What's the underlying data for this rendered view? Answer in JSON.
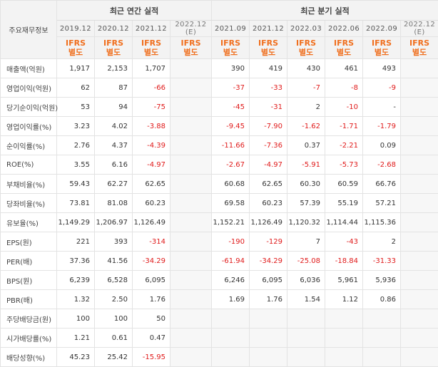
{
  "header": {
    "row_label": "주요재무정보",
    "annual_title": "최근 연간 실적",
    "quarter_title": "최근 분기 실적",
    "annual_periods": [
      {
        "period": "2019.12",
        "est": "",
        "type": "IFRS",
        "basis": "별도"
      },
      {
        "period": "2020.12",
        "est": "",
        "type": "IFRS",
        "basis": "별도"
      },
      {
        "period": "2021.12",
        "est": "",
        "type": "IFRS",
        "basis": "별도"
      },
      {
        "period": "2022.12",
        "est": "(E)",
        "type": "IFRS",
        "basis": "별도"
      }
    ],
    "quarter_periods": [
      {
        "period": "2021.09",
        "est": "",
        "type": "IFRS",
        "basis": "별도"
      },
      {
        "period": "2021.12",
        "est": "",
        "type": "IFRS",
        "basis": "별도"
      },
      {
        "period": "2022.03",
        "est": "",
        "type": "IFRS",
        "basis": "별도"
      },
      {
        "period": "2022.06",
        "est": "",
        "type": "IFRS",
        "basis": "별도"
      },
      {
        "period": "2022.09",
        "est": "",
        "type": "IFRS",
        "basis": "별도"
      },
      {
        "period": "2022.12",
        "est": "(E)",
        "type": "IFRS",
        "basis": "별도"
      }
    ]
  },
  "rows": [
    {
      "label": "매출액(억원)",
      "annual": [
        "1,917",
        "2,153",
        "1,707",
        ""
      ],
      "quarter": [
        "390",
        "419",
        "430",
        "461",
        "493",
        ""
      ]
    },
    {
      "label": "영업이익(억원)",
      "annual": [
        "62",
        "87",
        "-66",
        ""
      ],
      "quarter": [
        "-37",
        "-33",
        "-7",
        "-8",
        "-9",
        ""
      ]
    },
    {
      "label": "당기순이익(억원)",
      "annual": [
        "53",
        "94",
        "-75",
        ""
      ],
      "quarter": [
        "-45",
        "-31",
        "2",
        "-10",
        "-",
        ""
      ]
    },
    {
      "label": "영업이익률(%)",
      "annual": [
        "3.23",
        "4.02",
        "-3.88",
        ""
      ],
      "quarter": [
        "-9.45",
        "-7.90",
        "-1.62",
        "-1.71",
        "-1.79",
        ""
      ]
    },
    {
      "label": "순이익률(%)",
      "annual": [
        "2.76",
        "4.37",
        "-4.39",
        ""
      ],
      "quarter": [
        "-11.66",
        "-7.36",
        "0.37",
        "-2.21",
        "0.09",
        ""
      ]
    },
    {
      "label": "ROE(%)",
      "annual": [
        "3.55",
        "6.16",
        "-4.97",
        ""
      ],
      "quarter": [
        "-2.67",
        "-4.97",
        "-5.91",
        "-5.73",
        "-2.68",
        ""
      ]
    },
    {
      "label": "부채비율(%)",
      "annual": [
        "59.43",
        "62.27",
        "62.65",
        ""
      ],
      "quarter": [
        "60.68",
        "62.65",
        "60.30",
        "60.59",
        "66.76",
        ""
      ]
    },
    {
      "label": "당좌비율(%)",
      "annual": [
        "73.81",
        "81.08",
        "60.23",
        ""
      ],
      "quarter": [
        "69.58",
        "60.23",
        "57.39",
        "55.19",
        "57.21",
        ""
      ]
    },
    {
      "label": "유보율(%)",
      "annual": [
        "1,149.29",
        "1,206.97",
        "1,126.49",
        ""
      ],
      "quarter": [
        "1,152.21",
        "1,126.49",
        "1,120.32",
        "1,114.44",
        "1,115.36",
        ""
      ]
    },
    {
      "label": "EPS(원)",
      "annual": [
        "221",
        "393",
        "-314",
        ""
      ],
      "quarter": [
        "-190",
        "-129",
        "7",
        "-43",
        "2",
        ""
      ]
    },
    {
      "label": "PER(배)",
      "annual": [
        "37.36",
        "41.56",
        "-34.29",
        ""
      ],
      "quarter": [
        "-61.94",
        "-34.29",
        "-25.08",
        "-18.84",
        "-31.33",
        ""
      ]
    },
    {
      "label": "BPS(원)",
      "annual": [
        "6,239",
        "6,528",
        "6,095",
        ""
      ],
      "quarter": [
        "6,246",
        "6,095",
        "6,036",
        "5,961",
        "5,936",
        ""
      ]
    },
    {
      "label": "PBR(배)",
      "annual": [
        "1.32",
        "2.50",
        "1.76",
        ""
      ],
      "quarter": [
        "1.69",
        "1.76",
        "1.54",
        "1.12",
        "0.86",
        ""
      ]
    },
    {
      "label": "주당배당금(원)",
      "annual": [
        "100",
        "100",
        "50",
        ""
      ],
      "quarter": [
        "",
        "",
        "",
        "",
        "",
        ""
      ]
    },
    {
      "label": "시가배당률(%)",
      "annual": [
        "1.21",
        "0.61",
        "0.47",
        ""
      ],
      "quarter": [
        "",
        "",
        "",
        "",
        "",
        ""
      ]
    },
    {
      "label": "배당성향(%)",
      "annual": [
        "45.23",
        "25.42",
        "-15.95",
        ""
      ],
      "quarter": [
        "",
        "",
        "",
        "",
        "",
        ""
      ]
    }
  ]
}
